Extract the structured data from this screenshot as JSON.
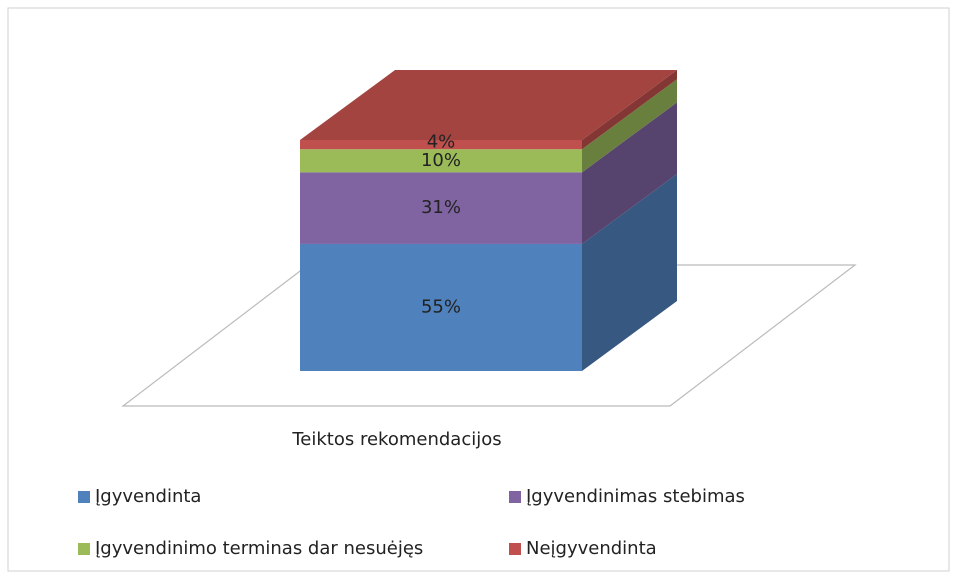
{
  "chart_data": {
    "type": "bar3d_stacked",
    "categories": [
      "Teiktos rekomendacijos"
    ],
    "series": [
      {
        "name": "Įgyvendinta",
        "color": "#4f81bd",
        "values": [
          55
        ],
        "value_labels": [
          "55%"
        ]
      },
      {
        "name": "Įgyvendinimas stebimas",
        "color": "#8064a2",
        "values": [
          31
        ],
        "value_labels": [
          "31%"
        ]
      },
      {
        "name": "Įgyvendinimo terminas dar nesuėjęs",
        "color": "#9bbb59",
        "values": [
          10
        ],
        "value_labels": [
          "10%"
        ]
      },
      {
        "name": "Neįgyvendinta",
        "color": "#c0504d",
        "values": [
          4
        ],
        "value_labels": [
          "4%"
        ]
      }
    ],
    "legend": "bottom"
  }
}
